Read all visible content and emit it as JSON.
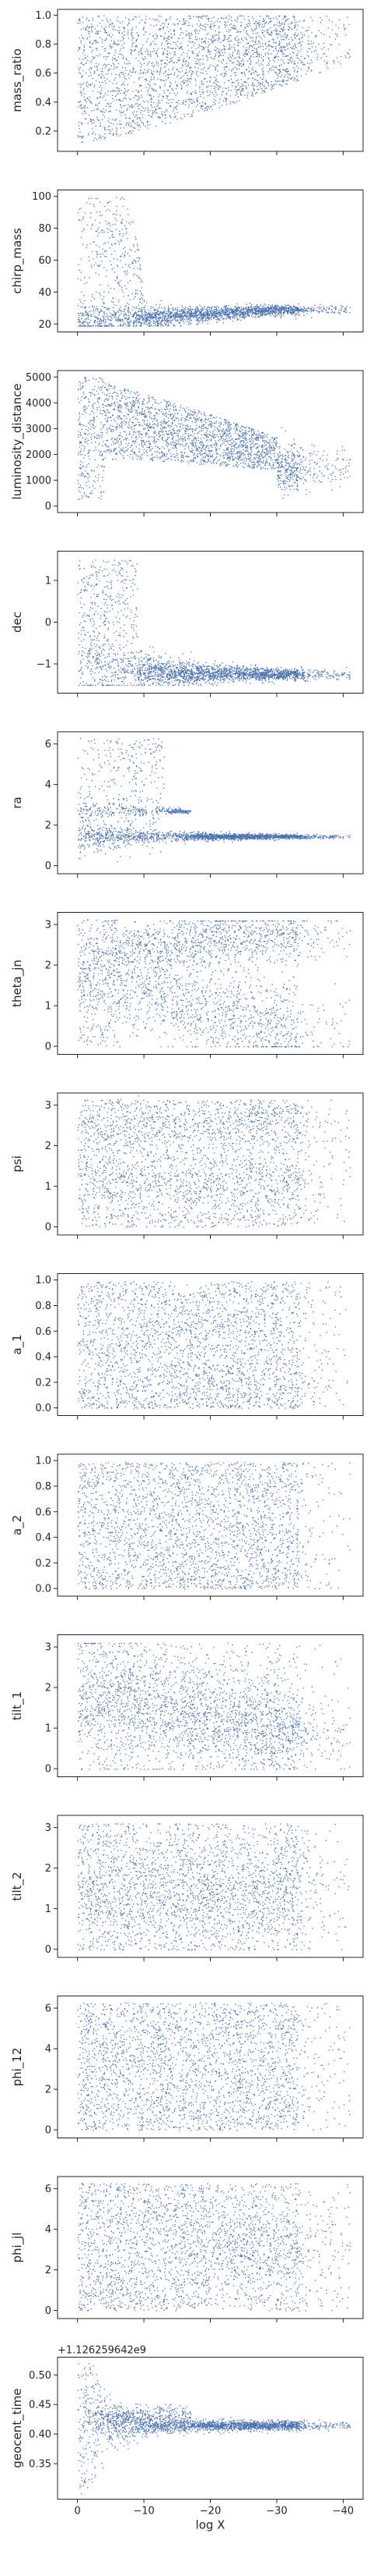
{
  "chart_data": {
    "type": "scatter",
    "layout": "stacked subplots sharing the x axis",
    "xlabel": "log X",
    "x_axis": {
      "inverted": true,
      "ticks": [
        0,
        -10,
        -20,
        -30,
        -40
      ],
      "tick_labels": [
        "0",
        "−10",
        "−20",
        "−30",
        "−40"
      ],
      "range": [
        3,
        -43
      ]
    },
    "marker_color": "#4c72b0",
    "grid": false,
    "panels": [
      {
        "ylabel": "mass_ratio",
        "ylim": [
          0.06,
          1.04
        ],
        "ticks": [
          0.2,
          0.4,
          0.6,
          0.8,
          1.0
        ],
        "tick_labels": [
          "0.2",
          "0.4",
          "0.6",
          "0.8",
          "1.0"
        ],
        "pattern": "mass_ratio"
      },
      {
        "ylabel": "chirp_mass",
        "ylim": [
          15,
          104
        ],
        "ticks": [
          20,
          40,
          60,
          80,
          100
        ],
        "tick_labels": [
          "20",
          "40",
          "60",
          "80",
          "100"
        ],
        "pattern": "chirp_mass"
      },
      {
        "ylabel": "luminosity_distance",
        "ylim": [
          -250,
          5250
        ],
        "ticks": [
          0,
          1000,
          2000,
          3000,
          4000,
          5000
        ],
        "tick_labels": [
          "0",
          "1000",
          "2000",
          "3000",
          "4000",
          "5000"
        ],
        "pattern": "luminosity_distance"
      },
      {
        "ylabel": "dec",
        "ylim": [
          -1.7,
          1.7
        ],
        "ticks": [
          -1,
          0,
          1
        ],
        "tick_labels": [
          "−1",
          "0",
          "1"
        ],
        "pattern": "dec"
      },
      {
        "ylabel": "ra",
        "ylim": [
          -0.4,
          6.6
        ],
        "ticks": [
          0,
          2,
          4,
          6
        ],
        "tick_labels": [
          "0",
          "2",
          "4",
          "6"
        ],
        "pattern": "ra"
      },
      {
        "ylabel": "theta_jn",
        "ylim": [
          -0.2,
          3.3
        ],
        "ticks": [
          0,
          1,
          2,
          3
        ],
        "tick_labels": [
          "0",
          "1",
          "2",
          "3"
        ],
        "pattern": "theta_jn"
      },
      {
        "ylabel": "psi",
        "ylim": [
          -0.2,
          3.3
        ],
        "ticks": [
          0,
          1,
          2,
          3
        ],
        "tick_labels": [
          "0",
          "1",
          "2",
          "3"
        ],
        "pattern": "psi"
      },
      {
        "ylabel": "a_1",
        "ylim": [
          -0.06,
          1.05
        ],
        "ticks": [
          0.0,
          0.2,
          0.4,
          0.6,
          0.8,
          1.0
        ],
        "tick_labels": [
          "0.0",
          "0.2",
          "0.4",
          "0.6",
          "0.8",
          "1.0"
        ],
        "pattern": "a"
      },
      {
        "ylabel": "a_2",
        "ylim": [
          -0.06,
          1.05
        ],
        "ticks": [
          0.0,
          0.2,
          0.4,
          0.6,
          0.8,
          1.0
        ],
        "tick_labels": [
          "0.0",
          "0.2",
          "0.4",
          "0.6",
          "0.8",
          "1.0"
        ],
        "pattern": "a"
      },
      {
        "ylabel": "tilt_1",
        "ylim": [
          -0.2,
          3.3
        ],
        "ticks": [
          0,
          1,
          2,
          3
        ],
        "tick_labels": [
          "0",
          "1",
          "2",
          "3"
        ],
        "pattern": "tilt_1"
      },
      {
        "ylabel": "tilt_2",
        "ylim": [
          -0.2,
          3.3
        ],
        "ticks": [
          0,
          1,
          2,
          3
        ],
        "tick_labels": [
          "0",
          "1",
          "2",
          "3"
        ],
        "pattern": "tilt_2"
      },
      {
        "ylabel": "phi_12",
        "ylim": [
          -0.4,
          6.6
        ],
        "ticks": [
          0,
          2,
          4,
          6
        ],
        "tick_labels": [
          "0",
          "2",
          "4",
          "6"
        ],
        "pattern": "uniform_phi"
      },
      {
        "ylabel": "phi_jl",
        "ylim": [
          -0.4,
          6.6
        ],
        "ticks": [
          0,
          2,
          4,
          6
        ],
        "tick_labels": [
          "0",
          "2",
          "4",
          "6"
        ],
        "pattern": "phi_jl"
      },
      {
        "ylabel": "geocent_time",
        "ylim": [
          0.29,
          0.53
        ],
        "ticks": [
          0.35,
          0.4,
          0.45,
          0.5
        ],
        "tick_labels": [
          "0.35",
          "0.40",
          "0.45",
          "0.50"
        ],
        "offset_text": "+1.126259642e9",
        "pattern": "geocent_time"
      }
    ]
  }
}
